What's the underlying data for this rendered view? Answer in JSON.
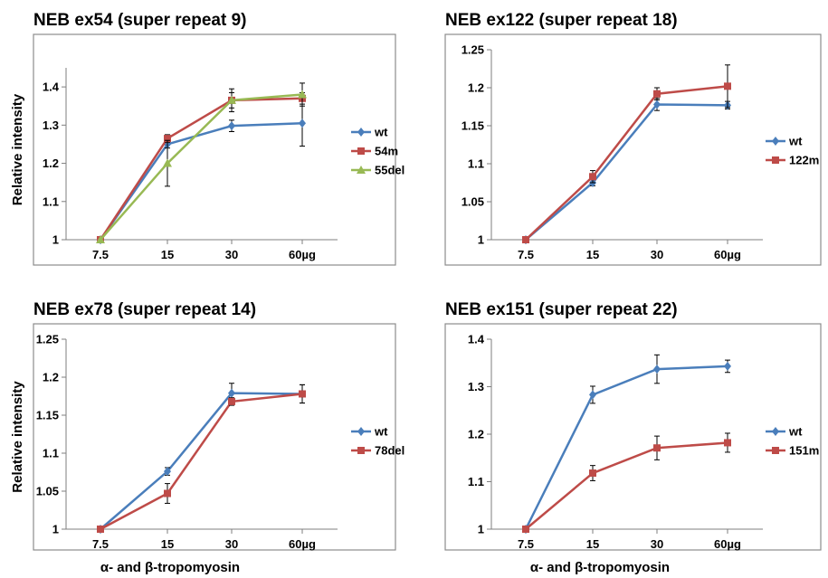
{
  "x_caption": "α- and β-tropomyosin",
  "colors": {
    "wt": "#4A7EBB",
    "red": "#BE4B48",
    "green": "#98B954"
  },
  "chart_data": [
    {
      "type": "line",
      "title": "NEB ex54 (super repeat 9)",
      "ylabel": "Relative intensity",
      "categories": [
        "7.5",
        "15",
        "30",
        "60µg"
      ],
      "ylim": [
        1,
        1.45
      ],
      "yticks": [
        "1",
        "1.1",
        "1.2",
        "1.3",
        "1.4"
      ],
      "series": [
        {
          "name": "wt",
          "marker": "diamond",
          "color": "#4A7EBB",
          "values": [
            1.0,
            1.25,
            1.298,
            1.305
          ],
          "errors": [
            0,
            0.01,
            0.015,
            0.06
          ]
        },
        {
          "name": "54m",
          "marker": "square",
          "color": "#BE4B48",
          "values": [
            1.0,
            1.265,
            1.365,
            1.37
          ],
          "errors": [
            0,
            0.01,
            0.03,
            0.015
          ]
        },
        {
          "name": "55del",
          "marker": "triangle",
          "color": "#98B954",
          "values": [
            1.0,
            1.2,
            1.365,
            1.38
          ],
          "errors": [
            0,
            0.06,
            0.02,
            0.03
          ]
        }
      ]
    },
    {
      "type": "line",
      "title": "NEB ex122 (super repeat 18)",
      "ylabel": "",
      "categories": [
        "7.5",
        "15",
        "30",
        "60µg"
      ],
      "ylim": [
        1,
        1.25
      ],
      "yticks": [
        "1",
        "1.05",
        "1.1",
        "1.15",
        "1.2",
        "1.25"
      ],
      "series": [
        {
          "name": "wt",
          "marker": "diamond",
          "color": "#4A7EBB",
          "values": [
            1.0,
            1.075,
            1.178,
            1.177
          ],
          "errors": [
            0,
            0.004,
            0.008,
            0.005
          ]
        },
        {
          "name": "122m",
          "marker": "square",
          "color": "#BE4B48",
          "values": [
            1.0,
            1.083,
            1.192,
            1.202
          ],
          "errors": [
            0,
            0.008,
            0.008,
            0.028
          ]
        }
      ]
    },
    {
      "type": "line",
      "title": "NEB ex78 (super repeat 14)",
      "ylabel": "Relative intensity",
      "categories": [
        "7.5",
        "15",
        "30",
        "60µg"
      ],
      "ylim": [
        1,
        1.25
      ],
      "yticks": [
        "1",
        "1.05",
        "1.1",
        "1.15",
        "1.2",
        "1.25"
      ],
      "series": [
        {
          "name": "wt",
          "marker": "diamond",
          "color": "#4A7EBB",
          "values": [
            1.0,
            1.076,
            1.179,
            1.178
          ],
          "errors": [
            0,
            0.005,
            0.013,
            0.012
          ]
        },
        {
          "name": "78del",
          "marker": "square",
          "color": "#BE4B48",
          "values": [
            1.0,
            1.047,
            1.168,
            1.178
          ],
          "errors": [
            0,
            0.013,
            0.005,
            0.012
          ]
        }
      ]
    },
    {
      "type": "line",
      "title": "NEB ex151 (super repeat 22)",
      "ylabel": "",
      "categories": [
        "7.5",
        "15",
        "30",
        "60µg"
      ],
      "ylim": [
        1,
        1.4
      ],
      "yticks": [
        "1",
        "1.1",
        "1.2",
        "1.3",
        "1.4"
      ],
      "series": [
        {
          "name": "wt",
          "marker": "diamond",
          "color": "#4A7EBB",
          "values": [
            1.0,
            1.283,
            1.337,
            1.343
          ],
          "errors": [
            0,
            0.018,
            0.03,
            0.013
          ]
        },
        {
          "name": "151m",
          "marker": "square",
          "color": "#BE4B48",
          "values": [
            1.0,
            1.118,
            1.171,
            1.182
          ],
          "errors": [
            0,
            0.016,
            0.025,
            0.02
          ]
        }
      ]
    }
  ]
}
